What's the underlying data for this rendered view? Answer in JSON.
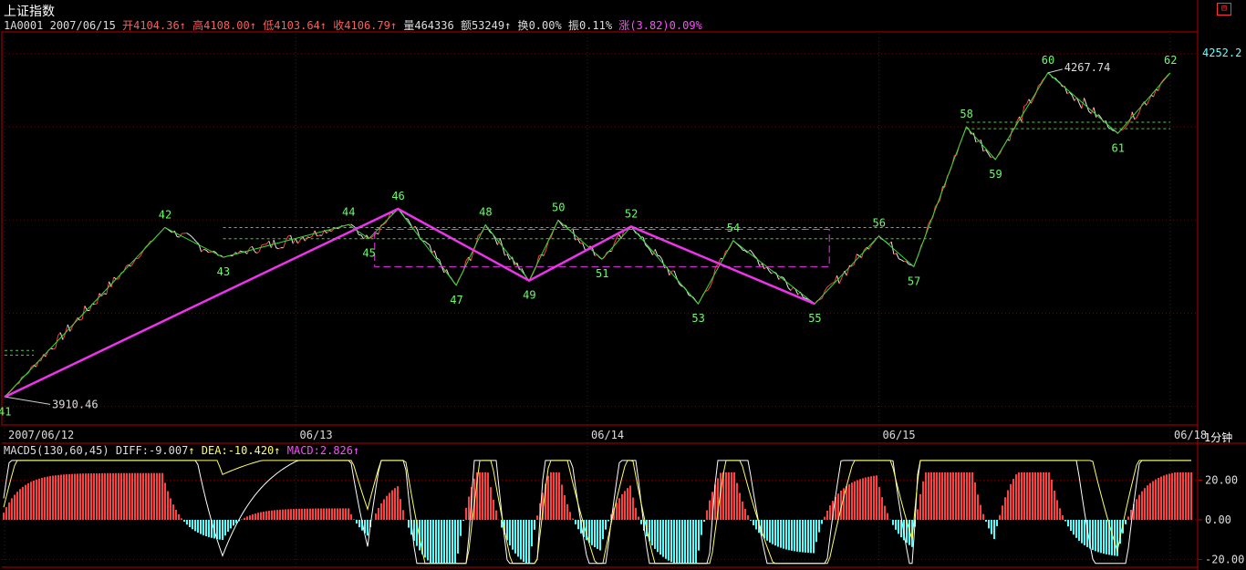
{
  "header": {
    "title": "上证指数",
    "code": "1A0001",
    "date": "2007/06/15",
    "open_label": "开",
    "open": "4104.36",
    "high_label": "高",
    "high": "4108.00",
    "low_label": "低",
    "low": "4103.64",
    "close_label": "收",
    "close": "4106.79",
    "volume_label": "量",
    "volume": "464336",
    "amount_label": "额",
    "amount": "53249",
    "turnover_label": "换",
    "turnover": "0.00%",
    "amplitude_label": "振",
    "amplitude": "0.11%",
    "change_label": "涨",
    "change": "(3.82)0.09%",
    "up_arrow": "↑"
  },
  "ui": {
    "period_label": "1分钟",
    "corner_icon": "restore-icon",
    "last_price": "4252.2"
  },
  "colors": {
    "background": "#000000",
    "border_red": "#b40000",
    "grid_red": "#7a0000",
    "up_red": "#ff4040",
    "down_cyan": "#54ffff",
    "zigzag_green": "#33dd33",
    "trend_magenta": "#ee33ee",
    "label_green": "#66ff66",
    "diff_white": "#ffffff",
    "dea_yellow": "#ffff66"
  },
  "chart_data": [
    {
      "type": "line",
      "title": "上证指数 1分钟",
      "x_ticks": [
        "2007/06/12",
        "06/13",
        "06/14",
        "06/15",
        "06/18"
      ],
      "y_range": [
        3880,
        4300
      ],
      "annotations": {
        "low": "3910.46",
        "high": "4267.74"
      },
      "zigzag_points": [
        {
          "label": "41",
          "x": 0.0,
          "y": 3910
        },
        {
          "label": "42",
          "x": 0.55,
          "y": 4092
        },
        {
          "label": "43",
          "x": 0.75,
          "y": 4060
        },
        {
          "label": "44",
          "x": 1.18,
          "y": 4095
        },
        {
          "label": "45",
          "x": 1.25,
          "y": 4080
        },
        {
          "label": "46",
          "x": 1.35,
          "y": 4112
        },
        {
          "label": "47",
          "x": 1.55,
          "y": 4030
        },
        {
          "label": "48",
          "x": 1.65,
          "y": 4095
        },
        {
          "label": "49",
          "x": 1.8,
          "y": 4035
        },
        {
          "label": "50",
          "x": 1.9,
          "y": 4100
        },
        {
          "label": "51",
          "x": 2.05,
          "y": 4058
        },
        {
          "label": "52",
          "x": 2.15,
          "y": 4093
        },
        {
          "label": "53",
          "x": 2.38,
          "y": 4010
        },
        {
          "label": "54",
          "x": 2.5,
          "y": 4078
        },
        {
          "label": "55",
          "x": 2.78,
          "y": 4010
        },
        {
          "label": "56",
          "x": 3.0,
          "y": 4083
        },
        {
          "label": "57",
          "x": 3.12,
          "y": 4050
        },
        {
          "label": "58",
          "x": 3.3,
          "y": 4200
        },
        {
          "label": "59",
          "x": 3.4,
          "y": 4165
        },
        {
          "label": "60",
          "x": 3.58,
          "y": 4258
        },
        {
          "label": "61",
          "x": 3.82,
          "y": 4193
        },
        {
          "label": "62",
          "x": 4.0,
          "y": 4258
        }
      ],
      "trend_line_points": [
        "41",
        "46",
        "49",
        "52",
        "55"
      ],
      "box": {
        "x_from": 1.27,
        "x_to": 2.83,
        "y_from": 4050,
        "y_to": 4090
      }
    },
    {
      "type": "bar",
      "title": "MACD5",
      "params": "(130,60,45)",
      "diff_label": "DIFF:",
      "diff": "-9.007",
      "dea_label": "DEA:",
      "dea": "-10.420",
      "macd_label": "MACD:",
      "macd": "2.826",
      "y_ticks": [
        "20.00",
        "0.00",
        "-20.00"
      ],
      "y_range": [
        -25,
        35
      ]
    }
  ]
}
